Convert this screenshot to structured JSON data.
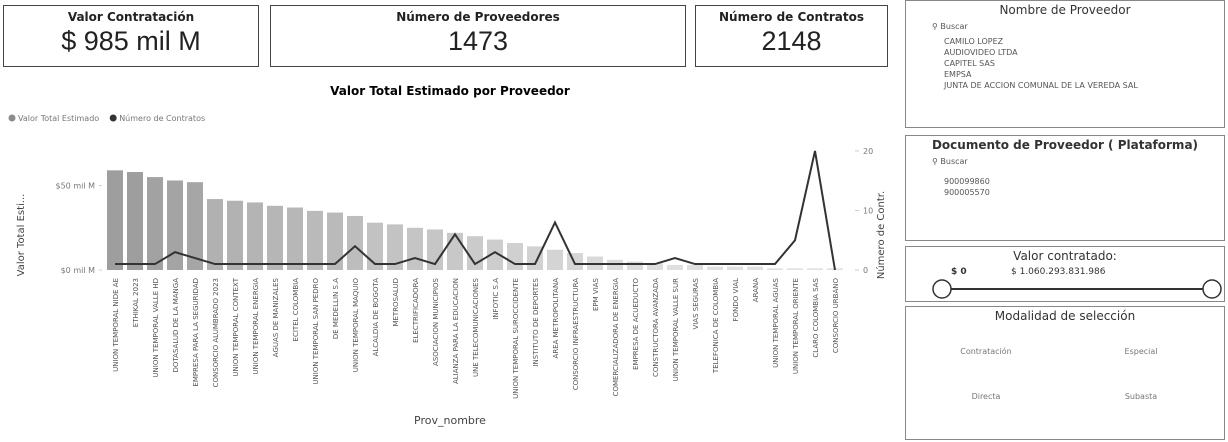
{
  "cards": [
    {
      "title": "Valor Contratación",
      "value": "$ 985 mil M"
    },
    {
      "title": "Número de Proveedores",
      "value": "1473"
    },
    {
      "title": "Número de Contratos",
      "value": "2148"
    }
  ],
  "chart_data": {
    "type": "combo",
    "title": "Valor Total Estimado por Proveedor",
    "x_label": "Prov_nombre",
    "y_label": "Valor Total Esti...",
    "y2_label": "Número de Contr.",
    "categories": [
      "UNION TEMPORAL NIDE AE",
      "ETHIKAL 2023",
      "UNION TEMPORAL VALLE HD",
      "DOTASALUD DE LA MANGA",
      "EMPRESA PARA LA SEGURIDAD",
      "CONSORCIO ALUMBRADO 2023",
      "UNION TEMPORAL CONTEXT",
      "UNION TEMPORAL ENERGIA",
      "AGUAS DE MANIZALES",
      "ECITEL COLOMBIA",
      "UNION TEMPORAL SAN PEDRO",
      "DE MEDELLIN S.A",
      "UNION TEMPORAL MAQUIO",
      "ALCALDIA DE BOGOTA",
      "METROSALUD",
      "ELECTRIFICADORA",
      "ASOCIACION MUNICIPIOS",
      "ALIANZA PARA LA EDUCACION",
      "UNE TELECOMUNICACIONES",
      "INFOTIC S.A",
      "UNION TEMPORAL SUROCCIDENTE",
      "INSTITUTO DE DEPORTES",
      "AREA METROPOLITANA",
      "CONSORCIO INFRAESTRUCTURA",
      "EPM VIAS",
      "COMERCIALIZADORA DE ENERGIA",
      "EMPRESA DE ACUEDUCTO",
      "CONSTRUCTORA AVANZADA",
      "UNION TEMPORAL VALLE SUR",
      "VIAS SEGURAS",
      "TELEFONICA DE COLOMBIA",
      "FONDO VIAL",
      "ARANA",
      "UNION TEMPORAL AGUAS",
      "UNION TEMPORAL ORIENTE",
      "CLARO COLOMBIA SAS",
      "CONSORCIO URBANO"
    ],
    "series": [
      {
        "name": "Valor Total Estimado",
        "color": "#8c8c8c",
        "axis": "y",
        "values": [
          59,
          58,
          55,
          53,
          52,
          42,
          41,
          40,
          38,
          37,
          35,
          34,
          32,
          28,
          27,
          25,
          24,
          22,
          20,
          18,
          16,
          14,
          12,
          10,
          8,
          6,
          5,
          4,
          3,
          3,
          2,
          2,
          2,
          1,
          1,
          1,
          1
        ]
      },
      {
        "name": "Número de Contratos",
        "color": "#333333",
        "axis": "y2",
        "values": [
          1,
          1,
          1,
          3,
          2,
          1,
          1,
          1,
          1,
          1,
          1,
          1,
          4,
          1,
          1,
          2,
          1,
          6,
          1,
          3,
          1,
          1,
          8,
          1,
          1,
          1,
          1,
          1,
          2,
          1,
          1,
          1,
          1,
          1,
          5,
          20,
          0
        ]
      }
    ],
    "ylim": [
      0,
      74
    ],
    "yticks": [
      {
        "value": 0,
        "label": "$0 mil M"
      },
      {
        "value": 50,
        "label": "$50 mil M"
      }
    ],
    "y2lim": [
      0,
      21
    ],
    "y2ticks": [
      0,
      10,
      20
    ],
    "legend": "top-left"
  },
  "slicers": {
    "proveedor": {
      "title": "Nombre de Proveedor",
      "search": "Buscar",
      "items": [
        "CAMILO LOPEZ",
        "AUDIOVIDEO LTDA",
        "CAPITEL SAS",
        "EMPSA",
        "JUNTA DE ACCION COMUNAL DE LA VEREDA SAL"
      ]
    },
    "documento": {
      "title": "Documento de Proveedor ( Plataforma)",
      "search": "Buscar",
      "items": [
        "900099860",
        "900005570"
      ]
    },
    "valor": {
      "title": "Valor contratado:",
      "min": "$ 0",
      "max": "$ 1.060.293.831.986"
    },
    "modalidad": {
      "title": "Modalidad de selección",
      "options": [
        "Contratación",
        "Especial",
        "Directa",
        "Subasta"
      ]
    }
  }
}
